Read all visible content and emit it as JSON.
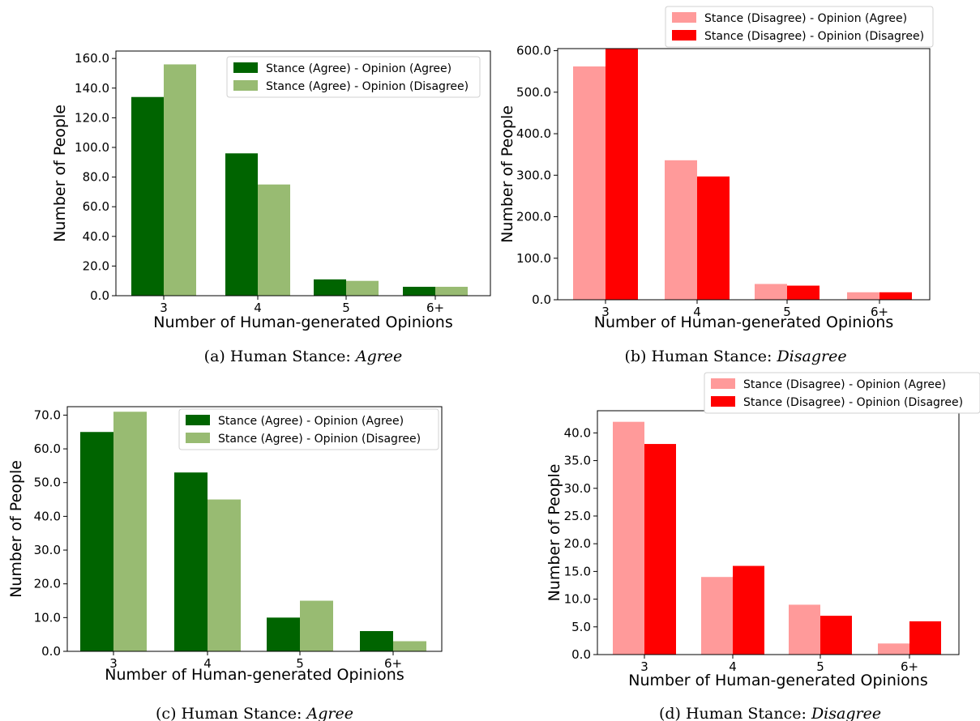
{
  "colors": {
    "agree_dark": "#006400",
    "agree_light": "#98bb72",
    "disagree_light": "#ff9a9a",
    "disagree_dark": "#ff0000"
  },
  "chart_data": [
    {
      "id": "a",
      "type": "bar",
      "caption_prefix": "(a) Human Stance: ",
      "caption_emph": "Agree",
      "categories": [
        "3",
        "4",
        "5",
        "6+"
      ],
      "series": [
        {
          "name": "Stance (Agree) - Opinion (Agree)",
          "values": [
            134,
            96,
            11,
            6
          ],
          "color": "#006400"
        },
        {
          "name": "Stance (Agree) - Opinion (Disagree)",
          "values": [
            156,
            75,
            10,
            6
          ],
          "color": "#98bb72"
        }
      ],
      "xlabel": "Number of Human-generated Opinions",
      "ylabel": "Number of People",
      "ylim": [
        0,
        165
      ],
      "yticks": [
        0,
        20,
        40,
        60,
        80,
        100,
        120,
        140,
        160
      ],
      "ytick_labels": [
        "0.0",
        "20.0",
        "40.0",
        "60.0",
        "80.0",
        "100.0",
        "120.0",
        "140.0",
        "160.0"
      ],
      "legend": "top-right inside",
      "grid": false
    },
    {
      "id": "b",
      "type": "bar",
      "caption_prefix": "(b) Human Stance: ",
      "caption_emph": "Disagree",
      "categories": [
        "3",
        "4",
        "5",
        "6+"
      ],
      "series": [
        {
          "name": "Stance (Disagree) - Opinion (Agree)",
          "values": [
            562,
            336,
            38,
            18
          ],
          "color": "#ff9a9a"
        },
        {
          "name": "Stance (Disagree) - Opinion (Disagree)",
          "values": [
            605,
            297,
            34,
            18
          ],
          "color": "#ff0000"
        }
      ],
      "xlabel": "Number of Human-generated Opinions",
      "ylabel": "Number of People",
      "ylim": [
        0,
        605
      ],
      "yticks": [
        0,
        100,
        200,
        300,
        400,
        500,
        600
      ],
      "ytick_labels": [
        "0.0",
        "100.0",
        "200.0",
        "300.0",
        "400.0",
        "500.0",
        "600.0"
      ],
      "legend": "above top-right",
      "grid": false
    },
    {
      "id": "c",
      "type": "bar",
      "caption_prefix": "(c) Human Stance: ",
      "caption_emph": "Agree",
      "categories": [
        "3",
        "4",
        "5",
        "6+"
      ],
      "series": [
        {
          "name": "Stance (Agree) - Opinion (Agree)",
          "values": [
            65,
            53,
            10,
            6
          ],
          "color": "#006400"
        },
        {
          "name": "Stance (Agree) - Opinion (Disagree)",
          "values": [
            71,
            45,
            15,
            3
          ],
          "color": "#98bb72"
        }
      ],
      "xlabel": "Number of Human-generated Opinions",
      "ylabel": "Number of People",
      "ylim": [
        0,
        72.5
      ],
      "yticks": [
        0,
        10,
        20,
        30,
        40,
        50,
        60,
        70
      ],
      "ytick_labels": [
        "0.0",
        "10.0",
        "20.0",
        "30.0",
        "40.0",
        "50.0",
        "60.0",
        "70.0"
      ],
      "legend": "top-right inside",
      "grid": false
    },
    {
      "id": "d",
      "type": "bar",
      "caption_prefix": "(d) Human Stance: ",
      "caption_emph": "Disagree",
      "categories": [
        "3",
        "4",
        "5",
        "6+"
      ],
      "series": [
        {
          "name": "Stance (Disagree) - Opinion (Agree)",
          "values": [
            42,
            14,
            9,
            2
          ],
          "color": "#ff9a9a"
        },
        {
          "name": "Stance (Disagree) - Opinion (Disagree)",
          "values": [
            38,
            16,
            7,
            6
          ],
          "color": "#ff0000"
        }
      ],
      "xlabel": "Number of Human-generated Opinions",
      "ylabel": "Number of People",
      "ylim": [
        0,
        44
      ],
      "yticks": [
        0,
        5,
        10,
        15,
        20,
        25,
        30,
        35,
        40
      ],
      "ytick_labels": [
        "0.0",
        "5.0",
        "10.0",
        "15.0",
        "20.0",
        "25.0",
        "30.0",
        "35.0",
        "40.0"
      ],
      "legend": "above top-right",
      "grid": false
    }
  ]
}
